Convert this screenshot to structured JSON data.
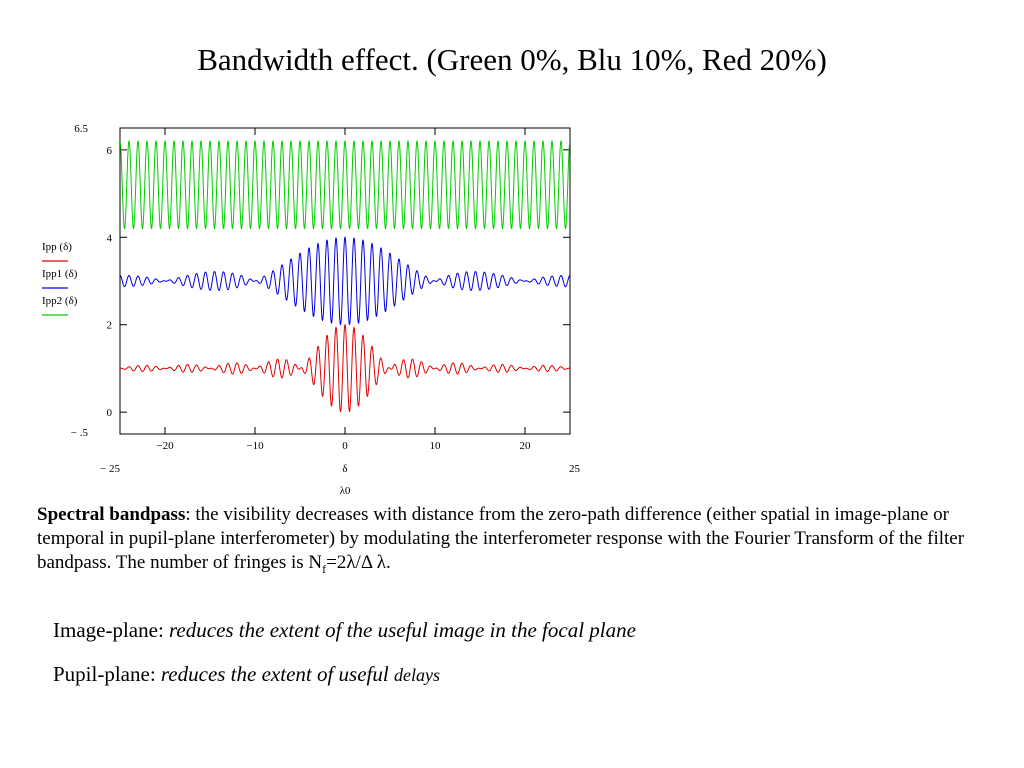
{
  "slide": {
    "title": "Bandwidth effect. (Green 0%, Blu 10%, Red 20%)",
    "paragraph": {
      "bold_term": "Spectral bandpass",
      "text_before_sub": ": the visibility decreases with distance from the zero-path difference (either spatial in image-plane or temporal in pupil-plane interferometer) by modulating the interferometer response with the Fourier Transform of the filter bandpass. The number of fringes is N",
      "subscript": "f",
      "text_after_sub": "=2λ/Δ λ."
    },
    "image_plane": {
      "label": "Image-plane: ",
      "italic_text": "reduces the extent of the useful image in the focal plane"
    },
    "pupil_plane": {
      "label": "Pupil-plane: ",
      "italic_text": "reduces the extent of useful ",
      "italic_small_text": "delays"
    }
  },
  "chart_data": {
    "type": "line",
    "title": "",
    "xlabel": "δ",
    "x_extra_label": "λ0",
    "xlim": [
      -25,
      25
    ],
    "ylim": [
      -0.5,
      6.5
    ],
    "x_limit_labels": [
      "− 25",
      "25"
    ],
    "y_limit_labels": [
      "6.5",
      "− .5"
    ],
    "x_ticks": [
      -20,
      -10,
      0,
      10,
      20
    ],
    "x_tick_labels": [
      "−20",
      "−10",
      "0",
      "10",
      "20"
    ],
    "y_ticks": [
      0,
      2,
      4,
      6
    ],
    "y_tick_labels": [
      "0",
      "2",
      "4",
      "6"
    ],
    "legend_placement": "left",
    "legend": [
      {
        "label": "Ipp (δ)",
        "color": "#e00000"
      },
      {
        "label": "Ipp1 (δ)",
        "color": "#0000dd"
      },
      {
        "label": "Ipp2 (δ)",
        "color": "#00cc00"
      }
    ],
    "series": [
      {
        "name": "Ipp (δ)",
        "color": "#e00000",
        "offset": 1,
        "amplitude": 1,
        "bandwidth_percent": 20
      },
      {
        "name": "Ipp1 (δ)",
        "color": "#0000dd",
        "offset": 3,
        "amplitude": 1,
        "bandwidth_percent": 10
      },
      {
        "name": "Ipp2 (δ)",
        "color": "#00cc00",
        "offset": 5.2,
        "amplitude": 1,
        "bandwidth_percent": 0
      }
    ],
    "fringe_period": 1
  }
}
